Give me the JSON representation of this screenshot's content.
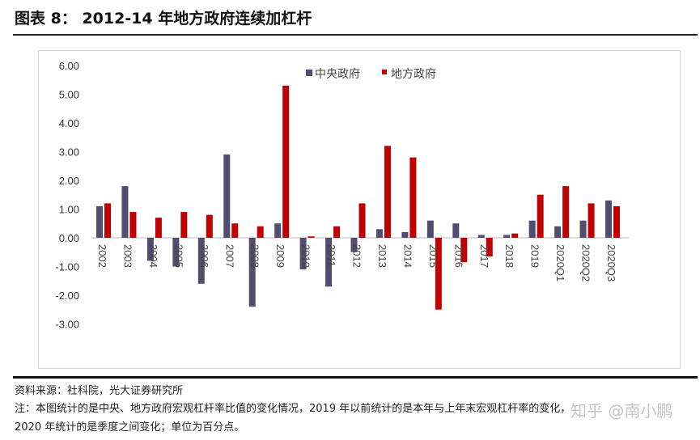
{
  "title": "图表 8： 2012-14 年地方政府连续加杠杆",
  "footer": {
    "source": "资料来源：社科院，光大证券研究所",
    "note_line1": "注：本图统计的是中央、地方政府宏观杠杆率比值的变化情况，2019 年以前统计的是本年与上年末宏观杠杆率的变化，",
    "note_line2": "2020 年统计的是季度之间变化；单位为百分点。",
    "watermark": "知乎 @南小鹏"
  },
  "colors": {
    "central": "#514d6e",
    "local": "#c00000"
  },
  "chart_data": {
    "type": "bar",
    "title": "",
    "xlabel": "",
    "ylabel": "",
    "ylim": [
      -3,
      6
    ],
    "yticks": [
      "6.00",
      "5.00",
      "4.00",
      "3.00",
      "2.00",
      "1.00",
      "0.00",
      "-1.00",
      "-2.00",
      "-3.00"
    ],
    "legend": "top-center",
    "categories": [
      "2002",
      "2003",
      "2004",
      "2005",
      "2006",
      "2007",
      "2008",
      "2009",
      "2010",
      "2011",
      "2012",
      "2013",
      "2014",
      "2015",
      "2016",
      "2017",
      "2018",
      "2019",
      "2020Q1",
      "2020Q2",
      "2020Q3"
    ],
    "series": [
      {
        "name": "中央政府",
        "values": [
          1.1,
          1.8,
          -0.8,
          -1.0,
          -1.6,
          2.9,
          -2.4,
          0.5,
          -1.1,
          -1.7,
          -0.5,
          0.3,
          0.2,
          0.6,
          0.5,
          0.1,
          0.1,
          0.6,
          0.4,
          0.6,
          1.3
        ]
      },
      {
        "name": "地方政府",
        "values": [
          1.2,
          0.9,
          0.7,
          0.9,
          0.8,
          0.5,
          0.4,
          5.3,
          0.05,
          0.4,
          1.2,
          3.2,
          2.8,
          -2.5,
          -0.85,
          -0.65,
          0.15,
          1.5,
          1.8,
          1.2,
          1.1
        ]
      }
    ]
  }
}
